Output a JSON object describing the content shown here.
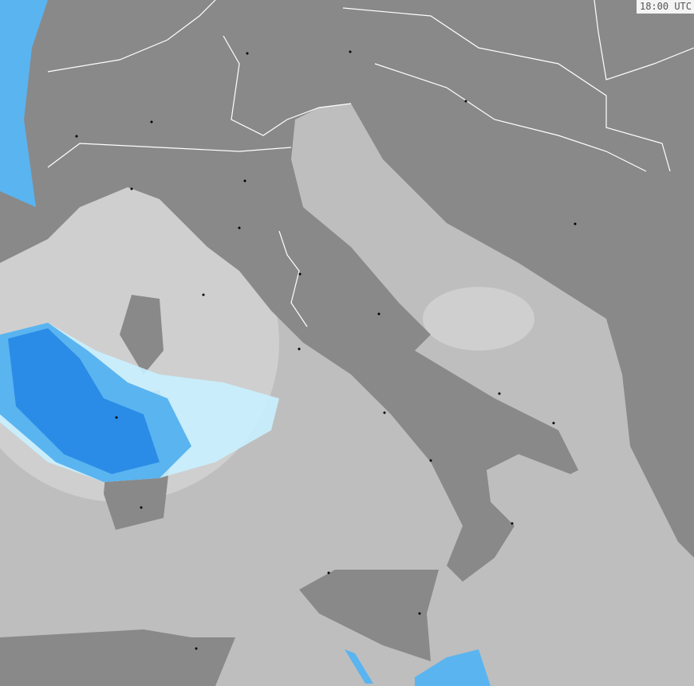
{
  "map": {
    "timestamp": "18:00 UTC",
    "colors": {
      "sea": "#bebebe",
      "land": "#898989",
      "border": "#ffffff",
      "radar_coverage": "#d2d2d2",
      "precip_light": "#c8f0ff",
      "precip_medium": "#5ab4f0",
      "precip_heavy": "#2a8ce6"
    }
  }
}
